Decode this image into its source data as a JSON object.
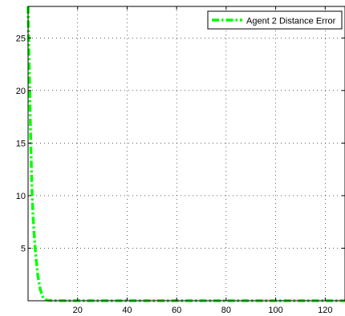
{
  "chart_data": {
    "type": "line",
    "title": "",
    "xlabel": "",
    "ylabel": "",
    "xlim": [
      0,
      128
    ],
    "ylim": [
      0,
      28
    ],
    "grid": true,
    "legend_placement": "top-right",
    "x_ticks": [
      20,
      40,
      60,
      80,
      100,
      120
    ],
    "y_ticks": [
      5,
      10,
      15,
      20,
      25
    ],
    "x_tick_labels": [
      "20",
      "40",
      "60",
      "80",
      "100",
      "120"
    ],
    "y_tick_labels": [
      "5",
      "10",
      "15",
      "20",
      "25"
    ],
    "series": [
      {
        "name": "Agent 2 Distance Error",
        "color": "#00ff00",
        "line_style": "dash-dot",
        "x": [
          0,
          0.5,
          1,
          1.5,
          2,
          3,
          4,
          5,
          6,
          7,
          8,
          10,
          15,
          20,
          40,
          60,
          80,
          100,
          120,
          128
        ],
        "y": [
          28,
          22,
          16,
          11,
          8,
          4.5,
          2.3,
          1.0,
          0.35,
          0.12,
          0.05,
          0.02,
          0.01,
          0.01,
          0.01,
          0.01,
          0.01,
          0.01,
          0.01,
          0.01
        ]
      }
    ]
  }
}
